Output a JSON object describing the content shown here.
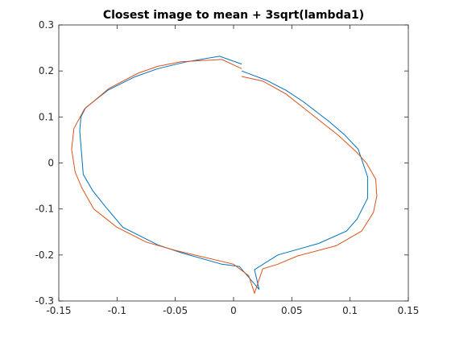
{
  "chart_data": {
    "type": "line",
    "title": "Closest image to mean + 3sqrt(lambda1)",
    "xlabel": "",
    "ylabel": "",
    "xlim": [
      -0.15,
      0.15
    ],
    "ylim": [
      -0.3,
      0.3
    ],
    "xticks": [
      -0.15,
      -0.1,
      -0.05,
      0,
      0.05,
      0.1,
      0.15
    ],
    "xtick_labels": [
      "-0.15",
      "-0.1",
      "-0.05",
      "0",
      "0.05",
      "0.1",
      "0.15"
    ],
    "yticks": [
      -0.3,
      -0.2,
      -0.1,
      0,
      0.1,
      0.2,
      0.3
    ],
    "ytick_labels": [
      "-0.3",
      "-0.2",
      "-0.1",
      "0",
      "0.1",
      "0.2",
      "0.3"
    ],
    "grid": false,
    "box": true,
    "series": [
      {
        "color": "#0072BD",
        "x": [
          0.007,
          -0.012,
          -0.04,
          -0.065,
          -0.085,
          -0.108,
          -0.127,
          -0.131,
          -0.132,
          -0.129,
          -0.121,
          -0.11,
          -0.095,
          -0.065,
          -0.045,
          -0.01,
          0.005,
          0.022,
          0.018,
          0.038,
          0.073,
          0.097,
          0.106,
          0.115,
          0.115,
          0.107,
          0.095,
          0.082,
          0.06,
          0.045,
          0.028,
          0.007
        ],
        "y": [
          0.215,
          0.232,
          0.22,
          0.205,
          0.187,
          0.158,
          0.12,
          0.1,
          0.07,
          -0.025,
          -0.06,
          -0.095,
          -0.14,
          -0.178,
          -0.195,
          -0.22,
          -0.225,
          -0.275,
          -0.232,
          -0.2,
          -0.175,
          -0.148,
          -0.122,
          -0.077,
          -0.03,
          0.03,
          0.062,
          0.09,
          0.133,
          0.158,
          0.18,
          0.2
        ]
      },
      {
        "color": "#D95319",
        "x": [
          0.007,
          -0.01,
          -0.045,
          -0.065,
          -0.082,
          -0.107,
          -0.128,
          -0.137,
          -0.139,
          -0.136,
          -0.13,
          -0.12,
          -0.1,
          -0.075,
          -0.05,
          0.0,
          0.013,
          0.018,
          0.025,
          0.038,
          0.055,
          0.088,
          0.11,
          0.12,
          0.123,
          0.122,
          0.114,
          0.105,
          0.09,
          0.065,
          0.045,
          0.025,
          0.007
        ],
        "y": [
          0.205,
          0.225,
          0.22,
          0.21,
          0.195,
          0.162,
          0.117,
          0.075,
          0.03,
          -0.02,
          -0.055,
          -0.1,
          -0.14,
          -0.172,
          -0.19,
          -0.22,
          -0.245,
          -0.283,
          -0.23,
          -0.22,
          -0.202,
          -0.18,
          -0.148,
          -0.108,
          -0.072,
          -0.035,
          0.0,
          0.025,
          0.06,
          0.11,
          0.15,
          0.178,
          0.188
        ]
      }
    ]
  }
}
